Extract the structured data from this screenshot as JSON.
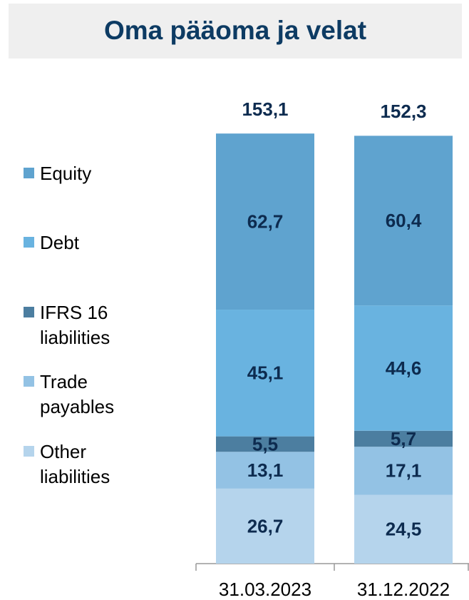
{
  "chart_data": {
    "type": "stacked_bar",
    "title": "Oma pääoma ja velat",
    "categories": [
      "31.03.2023",
      "31.12.2022"
    ],
    "series": [
      {
        "name": "Equity",
        "color": "#5fa3cf",
        "values": [
          62.7,
          60.4
        ],
        "value_labels": [
          "62,7",
          "60,4"
        ]
      },
      {
        "name": "Debt",
        "color": "#69b3e0",
        "values": [
          45.1,
          44.6
        ],
        "value_labels": [
          "45,1",
          "44,6"
        ]
      },
      {
        "name": "IFRS 16 liabilities",
        "color": "#4c7ea0",
        "values": [
          5.5,
          5.7
        ],
        "value_labels": [
          "5,5",
          "5,7"
        ]
      },
      {
        "name": "Trade payables",
        "color": "#93c2e4",
        "values": [
          13.1,
          17.1
        ],
        "value_labels": [
          "13,1",
          "17,1"
        ]
      },
      {
        "name": "Other liabilities",
        "color": "#b5d4ec",
        "values": [
          26.7,
          24.5
        ],
        "value_labels": [
          "26,7",
          "24,5"
        ]
      }
    ],
    "totals": {
      "values": [
        153.1,
        152.3
      ],
      "value_labels": [
        "153,1",
        "152,3"
      ]
    },
    "ylim": [
      0,
      160
    ],
    "legend": "left"
  }
}
